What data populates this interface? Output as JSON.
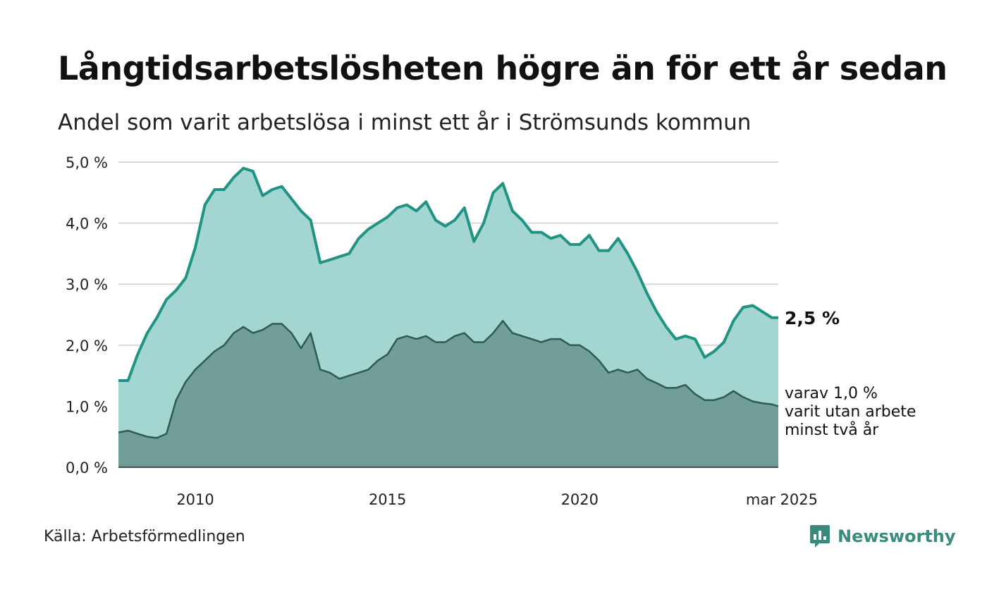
{
  "header": {
    "title": "Långtidsarbetslösheten högre än för ett år sedan",
    "subtitle": "Andel som varit arbetslösa i minst ett år i Strömsunds kommun"
  },
  "footer": {
    "source": "Källa: Arbetsförmedlingen",
    "brand": "Newsworthy"
  },
  "colors": {
    "upper_line": "#1f9484",
    "upper_fill": "#a3d6d0",
    "lower_line": "#2f5a52",
    "lower_fill": "#719f97",
    "grid": "#d9d9d9",
    "brand": "#3a8b7e"
  },
  "chart_data": {
    "type": "area",
    "x_start": "2008-01",
    "x_end": "2025-03",
    "ylim": [
      0,
      5
    ],
    "y_ticks": [
      {
        "value": 0,
        "label": "0,0 %"
      },
      {
        "value": 1,
        "label": "1,0 %"
      },
      {
        "value": 2,
        "label": "2,0 %"
      },
      {
        "value": 3,
        "label": "3,0 %"
      },
      {
        "value": 4,
        "label": "4,0 %"
      },
      {
        "value": 5,
        "label": "5,0 %"
      }
    ],
    "x_ticks": [
      {
        "x": "2010-01",
        "label": "2010"
      },
      {
        "x": "2015-01",
        "label": "2015"
      },
      {
        "x": "2020-01",
        "label": "2020"
      },
      {
        "x": "2025-03",
        "label": "mar 2025"
      }
    ],
    "grid": true,
    "end_label": "2,5 %",
    "note_lines": [
      "varav 1,0 %",
      "varit utan arbete",
      "minst två år"
    ],
    "series": [
      {
        "values_at_1y": [
          [
            "2008-01",
            1.42
          ],
          [
            "2008-04",
            1.42
          ],
          [
            "2008-07",
            1.85
          ],
          [
            "2008-10",
            2.2
          ],
          [
            "2009-01",
            2.45
          ],
          [
            "2009-04",
            2.75
          ],
          [
            "2009-07",
            2.9
          ],
          [
            "2009-10",
            3.1
          ],
          [
            "2010-01",
            3.6
          ],
          [
            "2010-04",
            4.3
          ],
          [
            "2010-07",
            4.55
          ],
          [
            "2010-10",
            4.55
          ],
          [
            "2011-01",
            4.75
          ],
          [
            "2011-04",
            4.9
          ],
          [
            "2011-07",
            4.85
          ],
          [
            "2011-10",
            4.45
          ],
          [
            "2012-01",
            4.55
          ],
          [
            "2012-04",
            4.6
          ],
          [
            "2012-07",
            4.4
          ],
          [
            "2012-10",
            4.2
          ],
          [
            "2013-01",
            4.05
          ],
          [
            "2013-04",
            3.35
          ],
          [
            "2013-07",
            3.4
          ],
          [
            "2013-10",
            3.45
          ],
          [
            "2014-01",
            3.5
          ],
          [
            "2014-04",
            3.75
          ],
          [
            "2014-07",
            3.9
          ],
          [
            "2014-10",
            4.0
          ],
          [
            "2015-01",
            4.1
          ],
          [
            "2015-04",
            4.25
          ],
          [
            "2015-07",
            4.3
          ],
          [
            "2015-10",
            4.2
          ],
          [
            "2016-01",
            4.35
          ],
          [
            "2016-04",
            4.05
          ],
          [
            "2016-07",
            3.95
          ],
          [
            "2016-10",
            4.05
          ],
          [
            "2017-01",
            4.25
          ],
          [
            "2017-04",
            3.7
          ],
          [
            "2017-07",
            4.0
          ],
          [
            "2017-10",
            4.5
          ],
          [
            "2018-01",
            4.65
          ],
          [
            "2018-04",
            4.2
          ],
          [
            "2018-07",
            4.05
          ],
          [
            "2018-10",
            3.85
          ],
          [
            "2019-01",
            3.85
          ],
          [
            "2019-04",
            3.75
          ],
          [
            "2019-07",
            3.8
          ],
          [
            "2019-10",
            3.65
          ],
          [
            "2020-01",
            3.65
          ],
          [
            "2020-04",
            3.8
          ],
          [
            "2020-07",
            3.55
          ],
          [
            "2020-10",
            3.55
          ],
          [
            "2021-01",
            3.75
          ],
          [
            "2021-04",
            3.5
          ],
          [
            "2021-07",
            3.2
          ],
          [
            "2021-10",
            2.85
          ],
          [
            "2022-01",
            2.55
          ],
          [
            "2022-04",
            2.3
          ],
          [
            "2022-07",
            2.1
          ],
          [
            "2022-10",
            2.15
          ],
          [
            "2023-01",
            2.1
          ],
          [
            "2023-04",
            1.8
          ],
          [
            "2023-07",
            1.9
          ],
          [
            "2023-10",
            2.05
          ],
          [
            "2024-01",
            2.4
          ],
          [
            "2024-04",
            2.62
          ],
          [
            "2024-07",
            2.65
          ],
          [
            "2024-10",
            2.55
          ],
          [
            "2025-01",
            2.45
          ],
          [
            "2025-03",
            2.45
          ]
        ]
      },
      {
        "values_at_2y": [
          [
            "2008-01",
            0.57
          ],
          [
            "2008-04",
            0.6
          ],
          [
            "2008-07",
            0.55
          ],
          [
            "2008-10",
            0.5
          ],
          [
            "2009-01",
            0.48
          ],
          [
            "2009-04",
            0.55
          ],
          [
            "2009-07",
            1.1
          ],
          [
            "2009-10",
            1.4
          ],
          [
            "2010-01",
            1.6
          ],
          [
            "2010-04",
            1.75
          ],
          [
            "2010-07",
            1.9
          ],
          [
            "2010-10",
            2.0
          ],
          [
            "2011-01",
            2.2
          ],
          [
            "2011-04",
            2.3
          ],
          [
            "2011-07",
            2.2
          ],
          [
            "2011-10",
            2.25
          ],
          [
            "2012-01",
            2.35
          ],
          [
            "2012-04",
            2.35
          ],
          [
            "2012-07",
            2.2
          ],
          [
            "2012-10",
            1.95
          ],
          [
            "2013-01",
            2.2
          ],
          [
            "2013-04",
            1.6
          ],
          [
            "2013-07",
            1.55
          ],
          [
            "2013-10",
            1.45
          ],
          [
            "2014-01",
            1.5
          ],
          [
            "2014-04",
            1.55
          ],
          [
            "2014-07",
            1.6
          ],
          [
            "2014-10",
            1.75
          ],
          [
            "2015-01",
            1.85
          ],
          [
            "2015-04",
            2.1
          ],
          [
            "2015-07",
            2.15
          ],
          [
            "2015-10",
            2.1
          ],
          [
            "2016-01",
            2.15
          ],
          [
            "2016-04",
            2.05
          ],
          [
            "2016-07",
            2.05
          ],
          [
            "2016-10",
            2.15
          ],
          [
            "2017-01",
            2.2
          ],
          [
            "2017-04",
            2.05
          ],
          [
            "2017-07",
            2.05
          ],
          [
            "2017-10",
            2.2
          ],
          [
            "2018-01",
            2.4
          ],
          [
            "2018-04",
            2.2
          ],
          [
            "2018-07",
            2.15
          ],
          [
            "2018-10",
            2.1
          ],
          [
            "2019-01",
            2.05
          ],
          [
            "2019-04",
            2.1
          ],
          [
            "2019-07",
            2.1
          ],
          [
            "2019-10",
            2.0
          ],
          [
            "2020-01",
            2.0
          ],
          [
            "2020-04",
            1.9
          ],
          [
            "2020-07",
            1.75
          ],
          [
            "2020-10",
            1.55
          ],
          [
            "2021-01",
            1.6
          ],
          [
            "2021-04",
            1.55
          ],
          [
            "2021-07",
            1.6
          ],
          [
            "2021-10",
            1.45
          ],
          [
            "2022-01",
            1.38
          ],
          [
            "2022-04",
            1.3
          ],
          [
            "2022-07",
            1.3
          ],
          [
            "2022-10",
            1.35
          ],
          [
            "2023-01",
            1.2
          ],
          [
            "2023-04",
            1.1
          ],
          [
            "2023-07",
            1.1
          ],
          [
            "2023-10",
            1.15
          ],
          [
            "2024-01",
            1.25
          ],
          [
            "2024-04",
            1.15
          ],
          [
            "2024-07",
            1.08
          ],
          [
            "2024-10",
            1.05
          ],
          [
            "2025-01",
            1.03
          ],
          [
            "2025-03",
            1.0
          ]
        ]
      }
    ]
  }
}
